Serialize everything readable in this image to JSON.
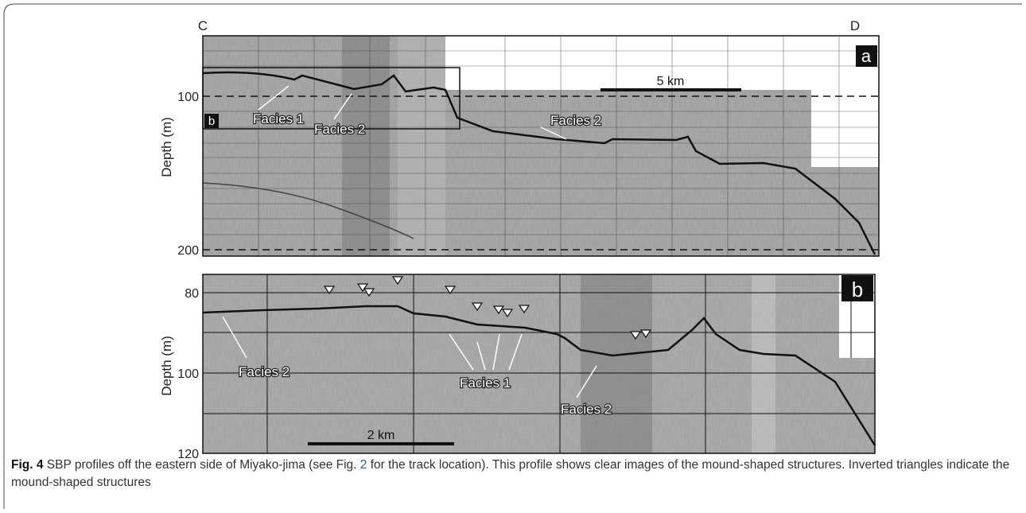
{
  "panel_a": {
    "label_left": "C",
    "label_right": "D",
    "tag": "a",
    "scale_bar": "5 km",
    "y_axis_label": "Depth (m)",
    "yticks": [
      100,
      200
    ],
    "inset_tag": "b",
    "annotations": [
      "Facies 1",
      "Facies 2",
      "Facies 2"
    ]
  },
  "panel_b": {
    "tag": "b",
    "scale_bar": "2 km",
    "y_axis_label": "Depth (m)",
    "yticks": [
      80,
      100,
      120
    ],
    "annotations": [
      "Facies 2",
      "Facies 1",
      "Facies 2"
    ]
  },
  "caption": {
    "label": "Fig. 4",
    "text_before": " SBP profiles off the eastern side of Miyako-jima (see Fig. ",
    "link": "2",
    "text_after": " for the track location). This profile shows clear images of the mound-shaped structures. Inverted triangles indicate the mound-shaped structures"
  }
}
